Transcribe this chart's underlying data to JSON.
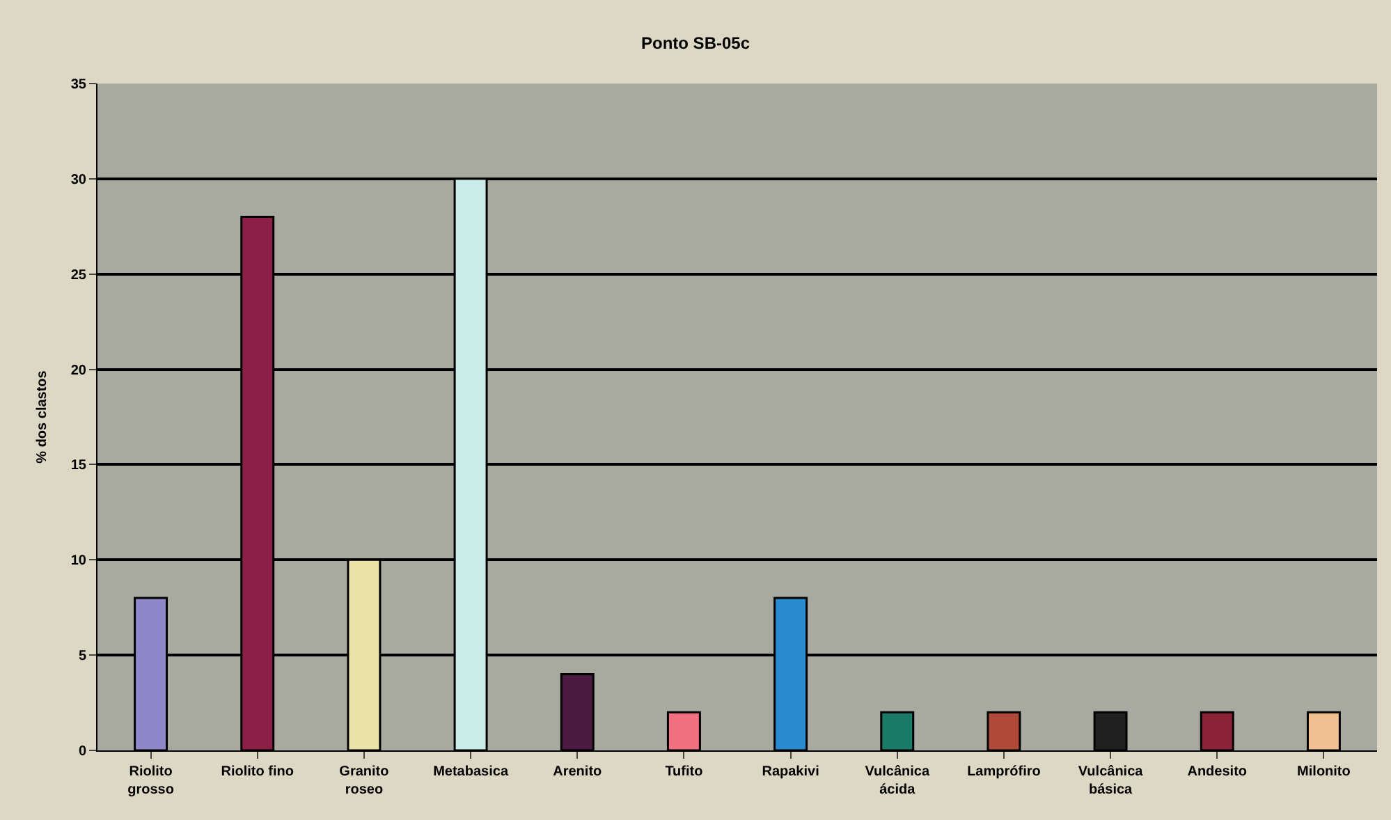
{
  "chart_data": {
    "type": "bar",
    "title": "Ponto SB-05c",
    "ylabel": "% dos clastos",
    "categories": [
      "Riolito\ngrosso",
      "Riolito fino",
      "Granito\nroseo",
      "Metabasica",
      "Arenito",
      "Tufito",
      "Rapakivi",
      "Vulcânica\nácida",
      "Lamprófiro",
      "Vulcânica\nbásica",
      "Andesito",
      "Milonito"
    ],
    "values": [
      8,
      28,
      10,
      30,
      4,
      2,
      8,
      2,
      2,
      2,
      2,
      2
    ],
    "colors": [
      "#8f88c8",
      "#8b1f45",
      "#ece4a6",
      "#c8ece8",
      "#4a1a40",
      "#f07080",
      "#2a8ad0",
      "#1a7a68",
      "#b04a38",
      "#202020",
      "#8a2238",
      "#f0c090"
    ],
    "ylim": [
      0,
      35
    ],
    "yticks": [
      0,
      5,
      10,
      15,
      20,
      25,
      30,
      35
    ],
    "grid": "y"
  }
}
